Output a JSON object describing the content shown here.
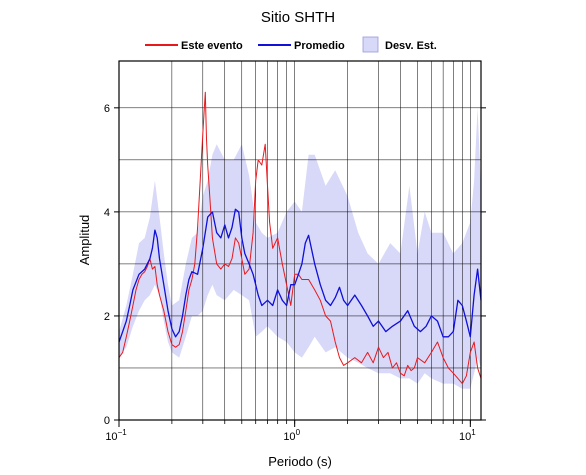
{
  "chart_data": {
    "type": "line",
    "title": "Sitio SHTH",
    "xlabel": "Periodo (s)",
    "ylabel": "Amplitud",
    "x_scale": "log",
    "xlim": [
      0.1,
      11.5
    ],
    "ylim": [
      0,
      6.9
    ],
    "x_ticks": [
      {
        "value": 0.1,
        "base": "10",
        "exp": "−1"
      },
      {
        "value": 1,
        "base": "10",
        "exp": "0"
      },
      {
        "value": 10,
        "base": "10",
        "exp": "1"
      }
    ],
    "y_ticks": [
      0,
      2,
      4,
      6
    ],
    "grid": true,
    "legend": {
      "position": "top",
      "entries": [
        "Este evento",
        "Promedio",
        "Desv. Est."
      ]
    },
    "colors": {
      "event": "#e8191e",
      "mean": "#1010d8",
      "band": "#d8d8f8"
    },
    "series": [
      {
        "name": "Este evento",
        "x": [
          0.1,
          0.105,
          0.11,
          0.115,
          0.12,
          0.125,
          0.13,
          0.135,
          0.14,
          0.145,
          0.15,
          0.155,
          0.16,
          0.165,
          0.17,
          0.18,
          0.19,
          0.2,
          0.21,
          0.22,
          0.23,
          0.24,
          0.25,
          0.26,
          0.27,
          0.28,
          0.29,
          0.3,
          0.31,
          0.315,
          0.32,
          0.33,
          0.34,
          0.36,
          0.38,
          0.4,
          0.42,
          0.44,
          0.46,
          0.48,
          0.5,
          0.52,
          0.55,
          0.58,
          0.6,
          0.62,
          0.65,
          0.68,
          0.7,
          0.72,
          0.75,
          0.8,
          0.85,
          0.9,
          0.95,
          1.0,
          1.05,
          1.1,
          1.2,
          1.3,
          1.4,
          1.5,
          1.6,
          1.7,
          1.8,
          1.9,
          2.0,
          2.2,
          2.4,
          2.6,
          2.8,
          3.0,
          3.2,
          3.4,
          3.6,
          3.8,
          4.0,
          4.2,
          4.4,
          4.6,
          4.8,
          5.0,
          5.5,
          6.0,
          6.5,
          7.0,
          7.5,
          8.0,
          8.5,
          9.0,
          9.5,
          10.0,
          10.5,
          11.0,
          11.5
        ],
        "values": [
          1.2,
          1.3,
          1.6,
          1.9,
          2.2,
          2.5,
          2.7,
          2.8,
          2.85,
          2.95,
          3.1,
          2.9,
          2.95,
          2.6,
          2.4,
          2.1,
          1.7,
          1.45,
          1.4,
          1.45,
          1.7,
          2.1,
          2.5,
          2.7,
          3.0,
          3.7,
          4.6,
          5.5,
          6.3,
          5.4,
          4.9,
          4.2,
          3.5,
          3.0,
          2.9,
          3.0,
          2.95,
          3.1,
          3.5,
          3.4,
          3.1,
          2.8,
          2.9,
          3.6,
          4.6,
          5.0,
          4.9,
          5.3,
          4.5,
          3.8,
          3.3,
          3.5,
          3.0,
          2.6,
          2.2,
          2.8,
          2.8,
          2.7,
          2.7,
          2.5,
          2.3,
          2.0,
          1.9,
          1.5,
          1.2,
          1.05,
          1.1,
          1.2,
          1.1,
          1.3,
          1.1,
          1.4,
          1.2,
          1.3,
          1.0,
          1.1,
          0.9,
          0.85,
          1.05,
          0.95,
          1.0,
          1.2,
          1.1,
          1.3,
          1.5,
          1.2,
          1.0,
          0.9,
          0.8,
          0.7,
          0.85,
          1.3,
          1.5,
          1.0,
          0.8
        ]
      },
      {
        "name": "Promedio",
        "x": [
          0.1,
          0.105,
          0.11,
          0.115,
          0.12,
          0.13,
          0.14,
          0.15,
          0.155,
          0.16,
          0.165,
          0.17,
          0.18,
          0.19,
          0.2,
          0.21,
          0.22,
          0.23,
          0.24,
          0.25,
          0.26,
          0.28,
          0.3,
          0.32,
          0.34,
          0.36,
          0.38,
          0.4,
          0.42,
          0.44,
          0.46,
          0.48,
          0.5,
          0.52,
          0.55,
          0.58,
          0.6,
          0.62,
          0.65,
          0.7,
          0.75,
          0.8,
          0.85,
          0.9,
          0.95,
          1.0,
          1.05,
          1.1,
          1.15,
          1.2,
          1.3,
          1.4,
          1.5,
          1.6,
          1.7,
          1.8,
          1.9,
          2.0,
          2.2,
          2.4,
          2.6,
          2.8,
          3.0,
          3.3,
          3.6,
          4.0,
          4.4,
          4.8,
          5.2,
          5.6,
          6.0,
          6.5,
          7.0,
          7.5,
          8.0,
          8.5,
          9.0,
          9.5,
          10.0,
          10.5,
          11.0,
          11.5
        ],
        "values": [
          1.5,
          1.7,
          1.9,
          2.2,
          2.5,
          2.8,
          2.9,
          3.1,
          3.3,
          3.65,
          3.5,
          3.1,
          2.6,
          2.1,
          1.75,
          1.6,
          1.7,
          2.0,
          2.4,
          2.7,
          2.85,
          2.8,
          3.3,
          3.9,
          4.0,
          3.6,
          3.5,
          3.75,
          3.5,
          3.7,
          4.05,
          4.0,
          3.5,
          3.2,
          3.0,
          2.8,
          2.6,
          2.4,
          2.2,
          2.3,
          2.2,
          2.5,
          2.3,
          2.2,
          2.6,
          2.6,
          2.8,
          3.0,
          3.4,
          3.55,
          3.0,
          2.6,
          2.3,
          2.2,
          2.35,
          2.55,
          2.3,
          2.2,
          2.4,
          2.2,
          2.0,
          1.8,
          1.9,
          1.7,
          1.8,
          1.9,
          2.1,
          1.8,
          1.7,
          1.8,
          2.0,
          1.9,
          1.6,
          1.6,
          1.7,
          2.3,
          2.2,
          1.9,
          1.6,
          2.4,
          2.9,
          2.3
        ]
      },
      {
        "name": "Desv. Est.",
        "x": [
          0.1,
          0.11,
          0.12,
          0.13,
          0.14,
          0.15,
          0.16,
          0.17,
          0.18,
          0.19,
          0.2,
          0.22,
          0.24,
          0.26,
          0.28,
          0.3,
          0.32,
          0.34,
          0.36,
          0.4,
          0.45,
          0.5,
          0.55,
          0.6,
          0.65,
          0.7,
          0.8,
          0.9,
          1.0,
          1.1,
          1.2,
          1.3,
          1.5,
          1.7,
          2.0,
          2.3,
          2.6,
          3.0,
          3.5,
          4.0,
          4.5,
          5.0,
          5.5,
          6.0,
          7.0,
          8.0,
          9.0,
          10.0,
          10.5,
          11.0,
          11.5
        ],
        "upper": [
          1.7,
          2.2,
          2.8,
          3.4,
          3.5,
          3.9,
          4.6,
          3.9,
          3.2,
          2.6,
          2.2,
          2.3,
          3.0,
          3.5,
          3.6,
          4.3,
          4.6,
          5.1,
          5.3,
          5.0,
          5.0,
          5.3,
          4.7,
          3.8,
          3.6,
          3.5,
          3.6,
          4.0,
          4.2,
          4.0,
          5.1,
          5.1,
          4.5,
          4.8,
          4.3,
          3.6,
          3.2,
          3.0,
          3.4,
          3.2,
          4.5,
          3.2,
          4.0,
          3.6,
          3.6,
          3.2,
          3.4,
          3.8,
          4.6,
          6.0,
          4.4
        ],
        "lower": [
          1.2,
          1.4,
          1.8,
          2.1,
          2.3,
          2.4,
          2.6,
          2.4,
          1.9,
          1.5,
          1.3,
          1.2,
          1.6,
          2.0,
          2.0,
          2.1,
          2.4,
          2.6,
          2.4,
          2.3,
          2.5,
          2.4,
          2.3,
          1.6,
          1.7,
          1.8,
          1.6,
          1.5,
          1.3,
          1.2,
          1.4,
          1.6,
          1.3,
          1.4,
          1.2,
          1.1,
          1.0,
          0.9,
          0.9,
          0.8,
          0.8,
          0.7,
          0.9,
          0.8,
          0.7,
          0.7,
          0.6,
          0.6,
          0.9,
          1.2,
          1.0
        ]
      }
    ]
  }
}
